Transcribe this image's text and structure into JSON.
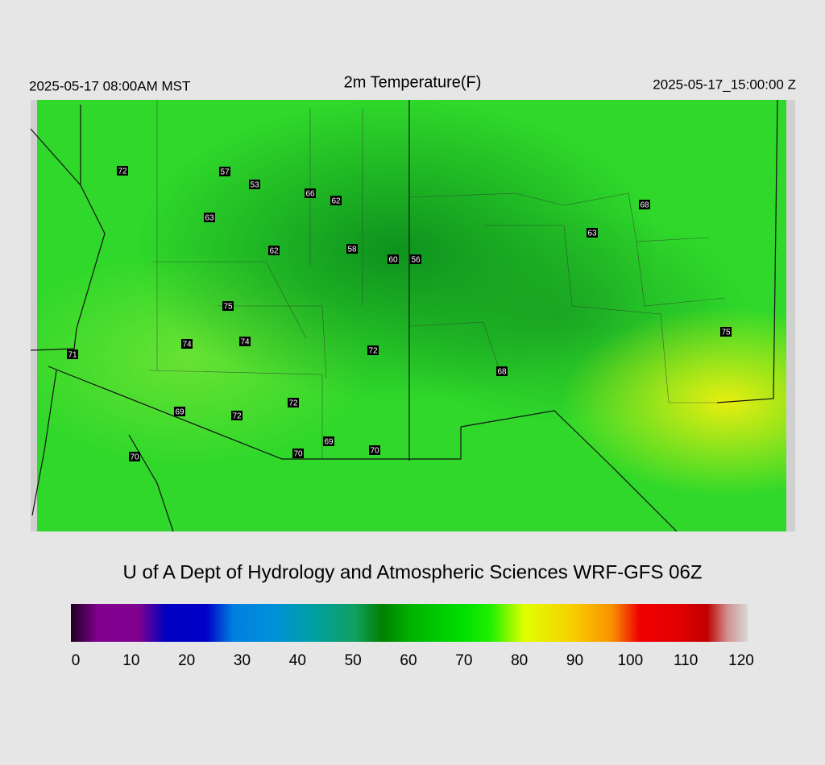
{
  "header": {
    "left": "2025-05-17 08:00AM MST",
    "title": "2m Temperature(F)",
    "right": "2025-05-17_15:00:00 Z"
  },
  "stations": [
    72,
    57,
    53,
    66,
    62,
    63,
    62,
    58,
    60,
    56,
    68,
    63,
    75,
    74,
    74,
    72,
    71,
    68,
    75,
    72,
    69,
    72,
    69,
    70,
    70,
    70
  ],
  "footer": "U of A Dept of Hydrology and Atmospheric Sciences WRF-GFS 06Z",
  "colorbar": {
    "lim": [
      0,
      120
    ],
    "ticks": [
      0,
      10,
      20,
      30,
      40,
      50,
      60,
      70,
      80,
      90,
      100,
      110,
      120
    ]
  }
}
